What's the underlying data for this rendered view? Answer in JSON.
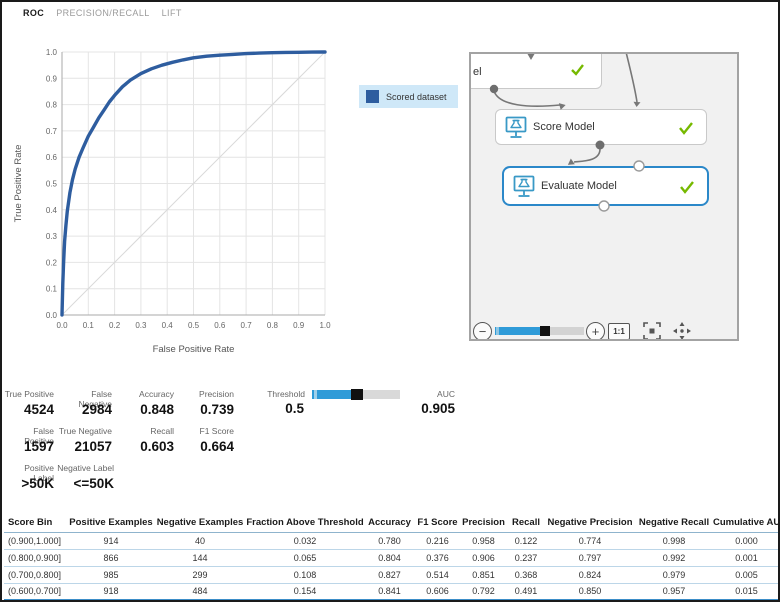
{
  "tabs": [
    {
      "label": "ROC",
      "active": true
    },
    {
      "label": "PRECISION/RECALL",
      "active": false
    },
    {
      "label": "LIFT",
      "active": false
    }
  ],
  "chart_data": {
    "type": "line",
    "title": "",
    "xlabel": "False Positive Rate",
    "ylabel": "True Positive Rate",
    "xlim": [
      0,
      1
    ],
    "ylim": [
      0,
      1
    ],
    "xticks": [
      0,
      0.1,
      0.2,
      0.3,
      0.4,
      0.5,
      0.6,
      0.7,
      0.8,
      0.9,
      1.0
    ],
    "yticks": [
      0,
      0.1,
      0.2,
      0.3,
      0.4,
      0.5,
      0.6,
      0.7,
      0.8,
      0.9,
      1.0
    ],
    "grid": true,
    "diagonal_reference": true,
    "legend_position": "right",
    "series": [
      {
        "name": "Scored dataset",
        "color": "#2e5d9f",
        "points": [
          [
            0,
            0
          ],
          [
            0.003,
            0.12
          ],
          [
            0.006,
            0.2
          ],
          [
            0.01,
            0.28
          ],
          [
            0.015,
            0.34
          ],
          [
            0.02,
            0.395
          ],
          [
            0.03,
            0.465
          ],
          [
            0.04,
            0.515
          ],
          [
            0.05,
            0.555
          ],
          [
            0.065,
            0.6
          ],
          [
            0.08,
            0.635
          ],
          [
            0.1,
            0.68
          ],
          [
            0.12,
            0.715
          ],
          [
            0.14,
            0.75
          ],
          [
            0.16,
            0.78
          ],
          [
            0.18,
            0.81
          ],
          [
            0.2,
            0.835
          ],
          [
            0.23,
            0.868
          ],
          [
            0.26,
            0.893
          ],
          [
            0.3,
            0.918
          ],
          [
            0.34,
            0.936
          ],
          [
            0.38,
            0.95
          ],
          [
            0.42,
            0.961
          ],
          [
            0.46,
            0.97
          ],
          [
            0.5,
            0.978
          ],
          [
            0.55,
            0.984
          ],
          [
            0.6,
            0.988
          ],
          [
            0.65,
            0.991
          ],
          [
            0.7,
            0.994
          ],
          [
            0.75,
            0.996
          ],
          [
            0.8,
            0.9975
          ],
          [
            0.85,
            0.9985
          ],
          [
            0.9,
            0.999
          ],
          [
            0.95,
            0.9995
          ],
          [
            1,
            1
          ]
        ]
      }
    ]
  },
  "legend": {
    "label": "Scored dataset",
    "swatch_color": "#2e5d9f"
  },
  "diagram": {
    "nodes": [
      {
        "label": "el",
        "truncated": true,
        "status": "complete"
      },
      {
        "label": "Score Model",
        "status": "complete"
      },
      {
        "label": "Evaluate Model",
        "status": "complete",
        "selected": true
      }
    ],
    "status_check_color": "#76b900",
    "toolbar": {
      "zoom_out": "−",
      "zoom_in": "+",
      "actual_size": "1:1",
      "zoom_level": 0.55
    }
  },
  "metrics": {
    "true_positive": {
      "label": "True Positive",
      "value": "4524"
    },
    "false_negative": {
      "label": "False Negative",
      "value": "2984"
    },
    "accuracy": {
      "label": "Accuracy",
      "value": "0.848"
    },
    "precision": {
      "label": "Precision",
      "value": "0.739"
    },
    "false_positive": {
      "label": "False Positive",
      "value": "1597"
    },
    "true_negative": {
      "label": "True Negative",
      "value": "21057"
    },
    "recall": {
      "label": "Recall",
      "value": "0.603"
    },
    "f1_score": {
      "label": "F1 Score",
      "value": "0.664"
    },
    "positive_label": {
      "label": "Positive Label",
      "value": ">50K"
    },
    "negative_label": {
      "label": "Negative Label",
      "value": "<=50K"
    },
    "threshold": {
      "label": "Threshold",
      "value": "0.5",
      "slider_pos": 0.5
    },
    "auc": {
      "label": "AUC",
      "value": "0.905"
    }
  },
  "bins_table": {
    "columns": [
      "Score Bin",
      "Positive Examples",
      "Negative Examples",
      "Fraction Above Threshold",
      "Accuracy",
      "F1 Score",
      "Precision",
      "Recall",
      "Negative Precision",
      "Negative Recall",
      "Cumulative AUC"
    ],
    "rows": [
      [
        "(0.900,1.000]",
        "914",
        "40",
        "0.032",
        "0.780",
        "0.216",
        "0.958",
        "0.122",
        "0.774",
        "0.998",
        "0.000"
      ],
      [
        "(0.800,0.900]",
        "866",
        "144",
        "0.065",
        "0.804",
        "0.376",
        "0.906",
        "0.237",
        "0.797",
        "0.992",
        "0.001"
      ],
      [
        "(0.700,0.800]",
        "985",
        "299",
        "0.108",
        "0.827",
        "0.514",
        "0.851",
        "0.368",
        "0.824",
        "0.979",
        "0.005"
      ],
      [
        "(0.600,0.700]",
        "918",
        "484",
        "0.154",
        "0.841",
        "0.606",
        "0.792",
        "0.491",
        "0.850",
        "0.957",
        "0.015"
      ]
    ]
  }
}
